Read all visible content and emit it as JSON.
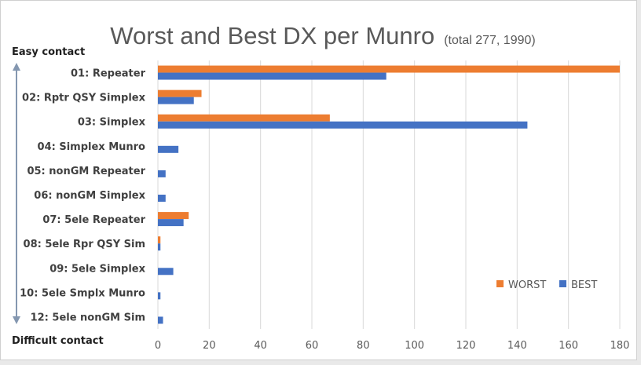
{
  "chart_data": {
    "type": "bar",
    "orientation": "horizontal",
    "title": "Worst and Best DX per Munro",
    "subtitle": "(total 277, 1990)",
    "categories": [
      "01: Repeater",
      "02: Rptr QSY Simplex",
      "03: Simplex",
      "04: Simplex Munro",
      "05: nonGM Repeater",
      "06: nonGM Simplex",
      "07: 5ele Repeater",
      "08: 5ele Rpr QSY Sim",
      "09: 5ele Simplex",
      "10: 5ele Smplx Munro",
      "12: 5ele nonGM Sim"
    ],
    "series": [
      {
        "name": "WORST",
        "color": "#ed7d31",
        "values": [
          180,
          17,
          67,
          0,
          0,
          0,
          12,
          1,
          0,
          0,
          0
        ]
      },
      {
        "name": "BEST",
        "color": "#4472c4",
        "values": [
          89,
          14,
          144,
          8,
          3,
          3,
          10,
          1,
          6,
          1,
          2
        ]
      }
    ],
    "xlim": [
      0,
      180
    ],
    "xticks": [
      0,
      20,
      40,
      60,
      80,
      100,
      120,
      140,
      160,
      180
    ],
    "grid": true,
    "legend_position": "bottom-right",
    "annotations": {
      "top": "Easy contact",
      "bottom": "Difficult contact"
    }
  }
}
